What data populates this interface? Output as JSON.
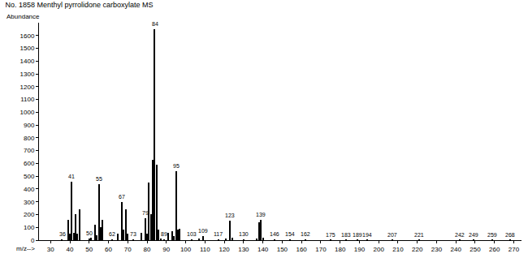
{
  "chart_data": {
    "type": "bar",
    "title": "No. 1858 Menthyl pyrrolidone carboxylate MS",
    "ylabel": "Abundance",
    "xlabel": "m/z-->",
    "color": "#000000",
    "grid": false,
    "x": [
      36,
      39,
      40,
      41,
      42,
      43,
      44,
      45,
      50,
      51,
      53,
      54,
      55,
      56,
      57,
      62,
      65,
      67,
      68,
      69,
      70,
      73,
      77,
      79,
      80,
      81,
      82,
      83,
      84,
      85,
      86,
      87,
      89,
      91,
      93,
      94,
      95,
      96,
      97,
      103,
      107,
      109,
      117,
      121,
      123,
      124,
      130,
      137,
      138,
      139,
      140,
      146,
      154,
      162,
      175,
      183,
      189,
      194,
      207,
      221,
      242,
      249,
      259,
      268
    ],
    "values": [
      5,
      160,
      50,
      455,
      60,
      200,
      50,
      240,
      10,
      20,
      120,
      40,
      440,
      100,
      160,
      5,
      50,
      300,
      80,
      240,
      50,
      5,
      60,
      170,
      50,
      450,
      200,
      630,
      1650,
      590,
      80,
      10,
      5,
      60,
      70,
      30,
      540,
      80,
      90,
      5,
      15,
      30,
      5,
      15,
      150,
      20,
      5,
      10,
      140,
      160,
      20,
      5,
      5,
      5,
      3,
      3,
      3,
      3,
      3,
      3,
      2,
      2,
      2,
      2
    ],
    "annotations": [
      36,
      41,
      50,
      55,
      62,
      67,
      73,
      79,
      84,
      89,
      95,
      103,
      109,
      117,
      123,
      130,
      139,
      146,
      154,
      162,
      175,
      183,
      189,
      194,
      207,
      221,
      242,
      249,
      259,
      268
    ],
    "xlim": [
      24,
      274
    ],
    "xticks": [
      30,
      40,
      50,
      60,
      70,
      80,
      90,
      100,
      110,
      120,
      130,
      140,
      150,
      160,
      170,
      180,
      190,
      200,
      210,
      220,
      230,
      240,
      250,
      260,
      270
    ],
    "ylim": [
      0,
      1700
    ],
    "yticks": [
      0,
      100,
      200,
      300,
      400,
      500,
      600,
      700,
      800,
      900,
      1000,
      1100,
      1200,
      1300,
      1400,
      1500,
      1600
    ]
  }
}
